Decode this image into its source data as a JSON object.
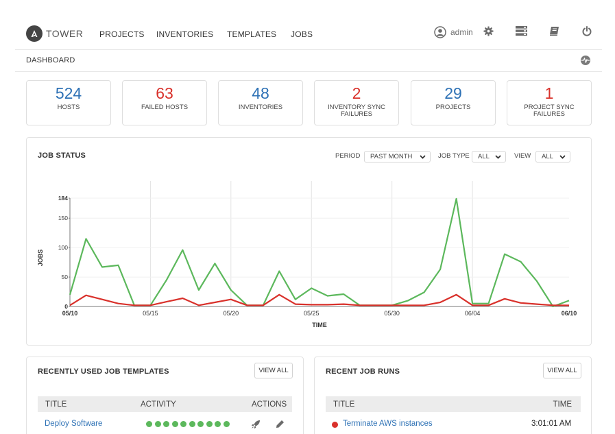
{
  "nav": {
    "brand": "TOWER",
    "links": [
      "PROJECTS",
      "INVENTORIES",
      "TEMPLATES",
      "JOBS"
    ],
    "user": "admin"
  },
  "breadcrumb": "DASHBOARD",
  "counts": [
    {
      "value": "524",
      "label": "HOSTS",
      "color": "#2d71b5"
    },
    {
      "value": "63",
      "label": "FAILED HOSTS",
      "color": "#d9312b"
    },
    {
      "value": "48",
      "label": "INVENTORIES",
      "color": "#2d71b5"
    },
    {
      "value": "2",
      "label": "INVENTORY SYNC FAILURES",
      "color": "#d9312b"
    },
    {
      "value": "29",
      "label": "PROJECTS",
      "color": "#2d71b5"
    },
    {
      "value": "1",
      "label": "PROJECT SYNC FAILURES",
      "color": "#d9312b"
    }
  ],
  "job_status": {
    "title": "JOB STATUS",
    "filters": {
      "period_label": "PERIOD",
      "period_value": "PAST MONTH",
      "job_type_label": "JOB TYPE",
      "job_type_value": "ALL",
      "view_label": "VIEW",
      "view_value": "ALL"
    }
  },
  "chart_data": {
    "type": "line",
    "xlabel": "TIME",
    "ylabel": "JOBS",
    "ylim": [
      0,
      184
    ],
    "yticks": [
      0,
      50,
      100,
      150,
      184
    ],
    "x_tick_labels": [
      "05/10",
      "05/15",
      "05/20",
      "05/25",
      "05/30",
      "06/04",
      "06/10"
    ],
    "x_tick_days": [
      0,
      5,
      10,
      15,
      20,
      25,
      31
    ],
    "grid": "vertical",
    "series": [
      {
        "color": "#5cb85c",
        "values": [
          20,
          115,
          67,
          70,
          2,
          2,
          45,
          96,
          28,
          73,
          28,
          2,
          2,
          60,
          12,
          31,
          18,
          21,
          2,
          2,
          2,
          10,
          24,
          63,
          183,
          5,
          5,
          89,
          76,
          43,
          0,
          10
        ]
      },
      {
        "color": "#d9312b",
        "values": [
          2,
          19,
          12,
          5,
          2,
          2,
          8,
          14,
          2,
          7,
          12,
          2,
          2,
          20,
          4,
          3,
          3,
          4,
          2,
          2,
          2,
          2,
          2,
          7,
          20,
          2,
          2,
          13,
          6,
          4,
          2,
          2
        ]
      }
    ]
  },
  "recent_templates": {
    "title": "RECENTLY USED JOB TEMPLATES",
    "view_all": "VIEW ALL",
    "columns": [
      "TITLE",
      "ACTIVITY",
      "ACTIONS"
    ],
    "rows": [
      {
        "title": "Deploy Software",
        "activity_count": 10,
        "activity_color": "#5cb85c"
      }
    ]
  },
  "recent_jobs": {
    "title": "RECENT JOB RUNS",
    "view_all": "VIEW ALL",
    "columns": [
      "TITLE",
      "TIME"
    ],
    "rows": [
      {
        "title": "Terminate AWS instances",
        "time": "3:01:01 AM",
        "status_color": "#d9312b"
      }
    ]
  }
}
